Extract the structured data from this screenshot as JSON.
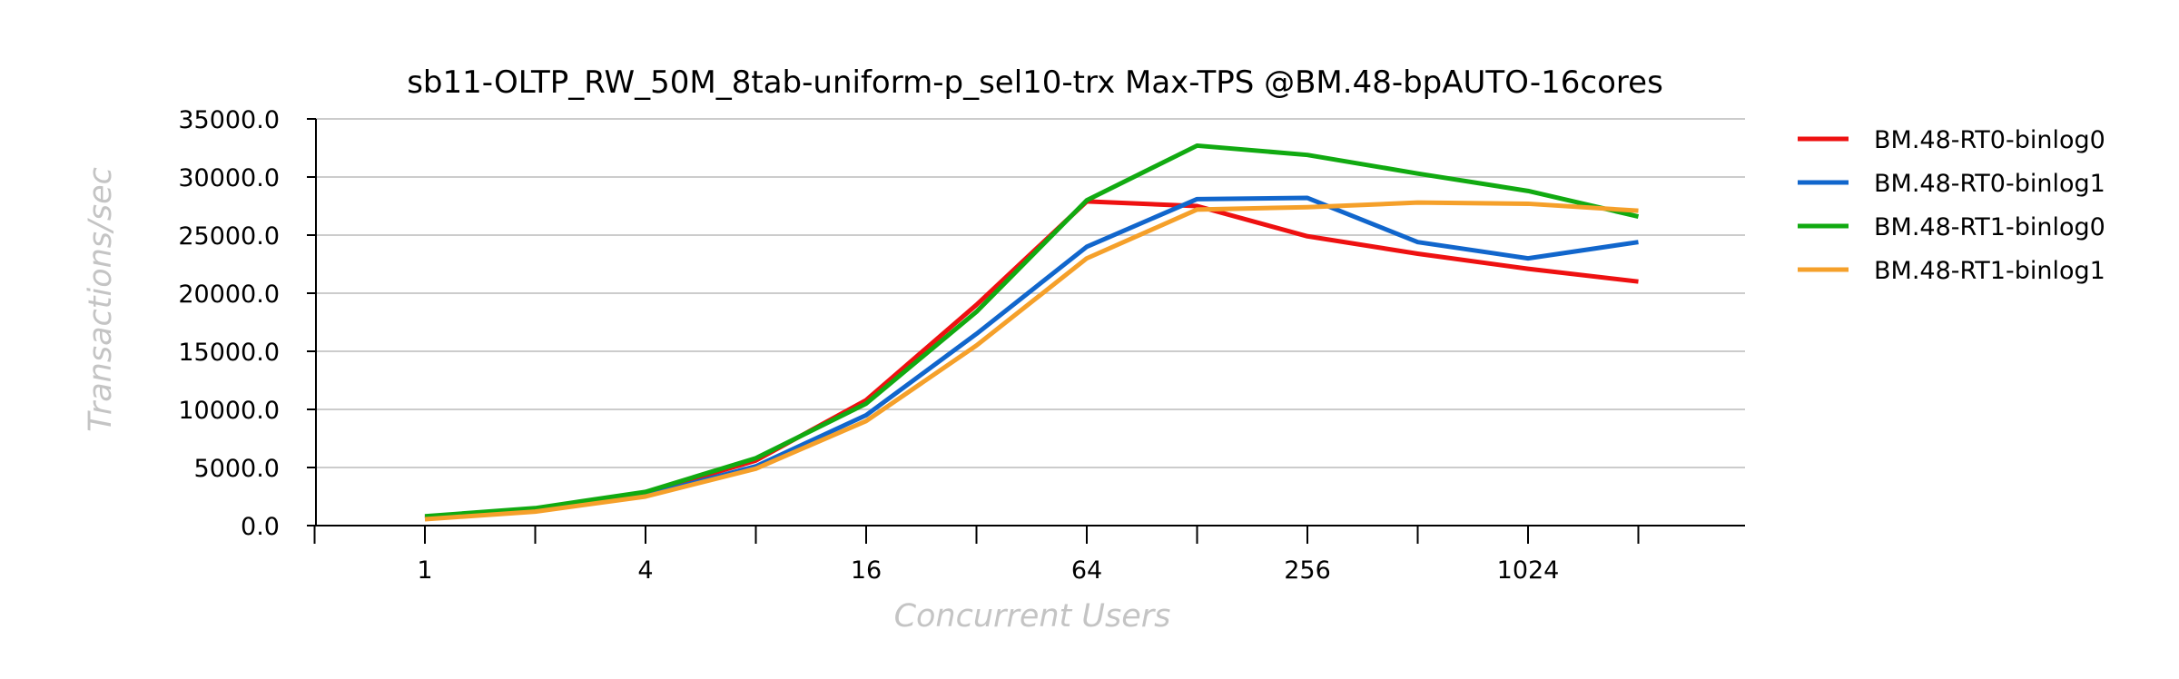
{
  "chart_data": {
    "type": "line",
    "title": "sb11-OLTP_RW_50M_8tab-uniform-p_sel10-trx Max-TPS @BM.48-bpAUTO-16cores",
    "xlabel": "Concurrent Users",
    "ylabel": "Transactions/sec",
    "x_scale": "log2",
    "x": [
      1,
      2,
      4,
      8,
      16,
      32,
      64,
      128,
      256,
      512,
      1024,
      2048
    ],
    "x_tick_labels": [
      "1",
      "4",
      "16",
      "64",
      "256",
      "1024"
    ],
    "y_tick_labels": [
      "0.0",
      "5000.0",
      "10000.0",
      "15000.0",
      "20000.0",
      "25000.0",
      "30000.0",
      "35000.0"
    ],
    "ylim": [
      0,
      35000
    ],
    "grid": "horizontal",
    "legend_position": "right",
    "series": [
      {
        "name": "BM.48-RT0-binlog0",
        "color": "#ee1111",
        "values": [
          700,
          1400,
          2800,
          5600,
          10800,
          19000,
          27900,
          27500,
          24900,
          23400,
          22100,
          21000
        ]
      },
      {
        "name": "BM.48-RT0-binlog1",
        "color": "#1166cc",
        "values": [
          600,
          1300,
          2600,
          5100,
          9500,
          16500,
          24000,
          28100,
          28200,
          24400,
          23000,
          24400
        ]
      },
      {
        "name": "BM.48-RT1-binlog0",
        "color": "#11aa11",
        "values": [
          800,
          1500,
          2900,
          5800,
          10500,
          18400,
          28000,
          32700,
          31900,
          30300,
          28800,
          26600
        ]
      },
      {
        "name": "BM.48-RT1-binlog1",
        "color": "#f5a02a",
        "values": [
          550,
          1200,
          2500,
          4900,
          9000,
          15500,
          23000,
          27200,
          27400,
          27800,
          27700,
          27100
        ]
      }
    ]
  }
}
